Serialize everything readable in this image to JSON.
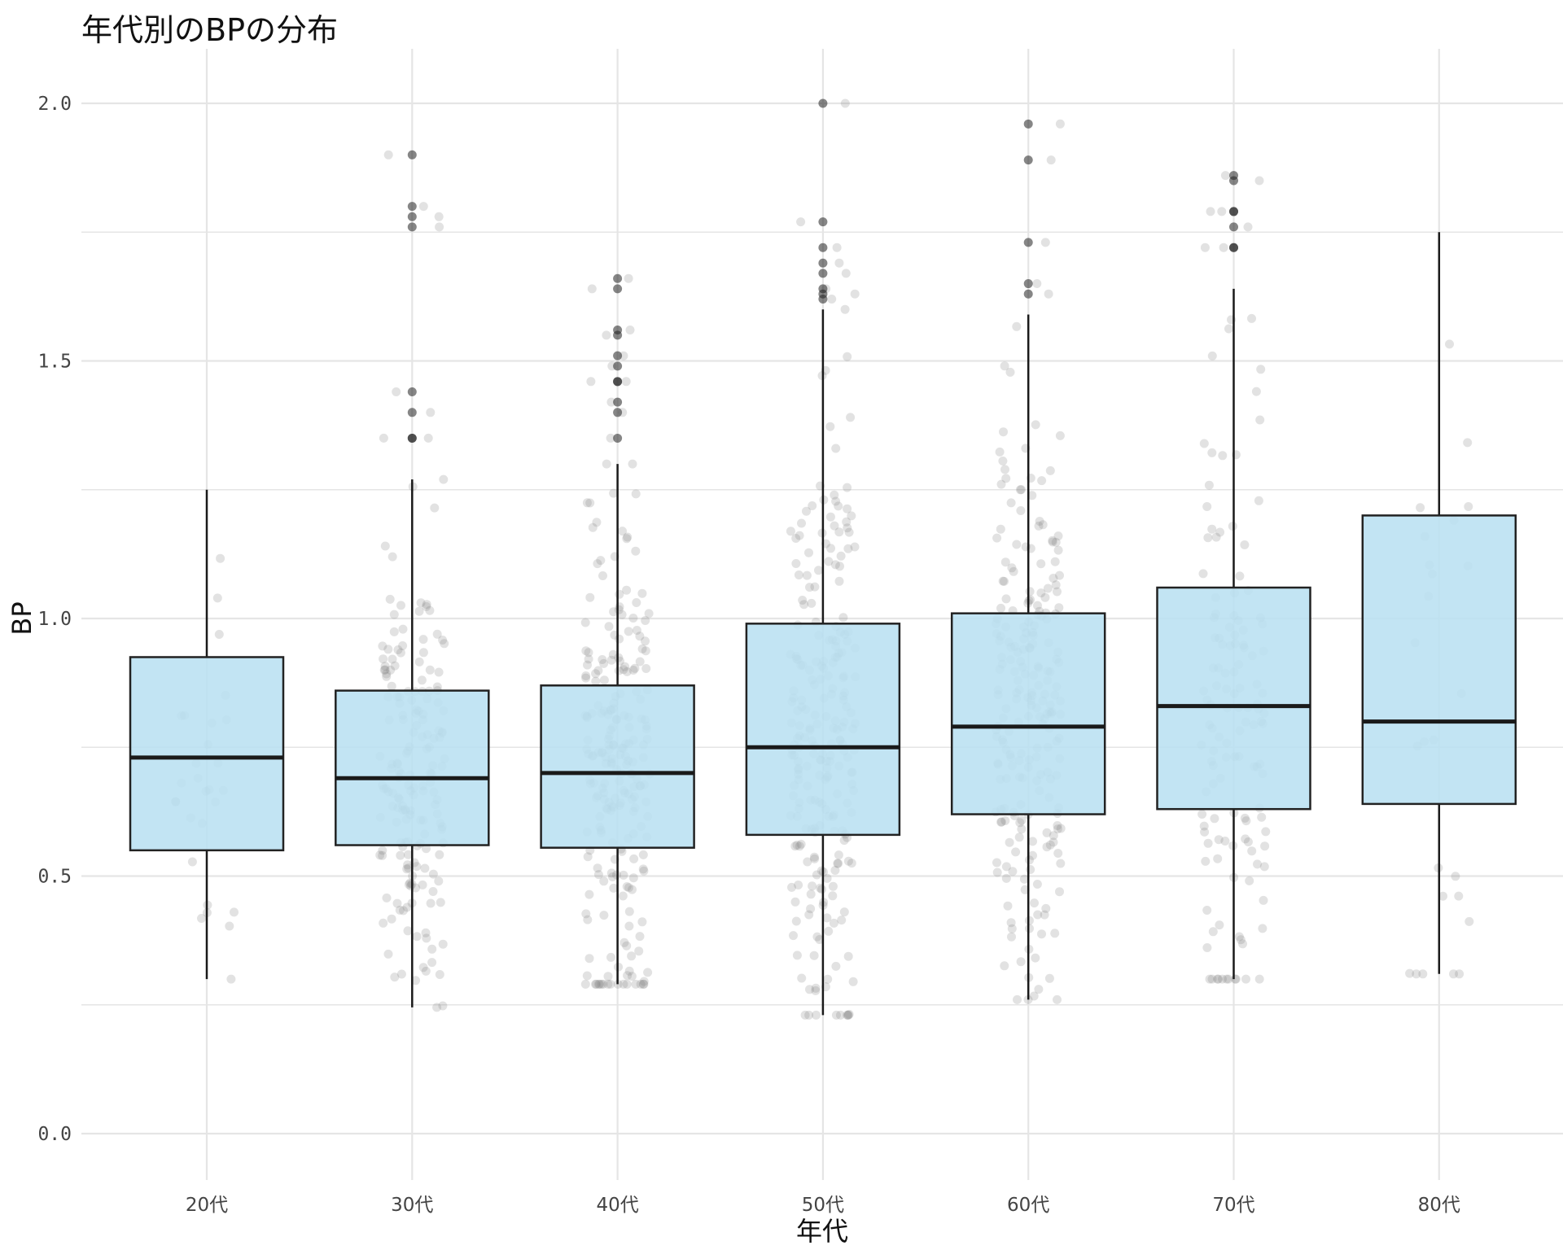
{
  "chart_data": {
    "type": "boxplot",
    "title": "年代別のBPの分布",
    "xlabel": "年代",
    "ylabel": "BP",
    "categories": [
      "20代",
      "30代",
      "40代",
      "50代",
      "60代",
      "70代",
      "80代"
    ],
    "ylim": [
      -0.09,
      2.11
    ],
    "y_ticks": [
      0.0,
      0.5,
      1.0,
      1.5,
      2.0
    ],
    "y_tick_labels": [
      "0.0",
      "0.5",
      "1.0",
      "1.5",
      "2.0"
    ],
    "grid": true,
    "legend": "none",
    "colors": {
      "box_fill": "#b9e0f1",
      "box_stroke": "#222222",
      "points": "#7a7a7a",
      "grid": "#e5e5e5"
    },
    "boxes": [
      {
        "category": "20代",
        "whisker_low": 0.3,
        "q1": 0.55,
        "median": 0.73,
        "q3": 0.925,
        "whisker_high": 1.25,
        "outliers": []
      },
      {
        "category": "30代",
        "whisker_low": 0.245,
        "q1": 0.56,
        "median": 0.69,
        "q3": 0.86,
        "whisker_high": 1.27,
        "outliers": [
          1.9,
          1.8,
          1.78,
          1.76,
          1.44,
          1.4,
          1.35,
          1.35
        ]
      },
      {
        "category": "40代",
        "whisker_low": 0.29,
        "q1": 0.555,
        "median": 0.7,
        "q3": 0.87,
        "whisker_high": 1.3,
        "outliers": [
          1.66,
          1.64,
          1.56,
          1.55,
          1.51,
          1.49,
          1.46,
          1.46,
          1.42,
          1.4,
          1.35
        ]
      },
      {
        "category": "50代",
        "whisker_low": 0.23,
        "q1": 0.58,
        "median": 0.75,
        "q3": 0.99,
        "whisker_high": 1.6,
        "outliers": [
          2.0,
          1.77,
          1.72,
          1.69,
          1.67,
          1.64,
          1.63,
          1.62
        ]
      },
      {
        "category": "60代",
        "whisker_low": 0.26,
        "q1": 0.62,
        "median": 0.79,
        "q3": 1.01,
        "whisker_high": 1.59,
        "outliers": [
          1.96,
          1.89,
          1.73,
          1.65,
          1.63
        ]
      },
      {
        "category": "70代",
        "whisker_low": 0.3,
        "q1": 0.63,
        "median": 0.83,
        "q3": 1.06,
        "whisker_high": 1.64,
        "outliers": [
          1.86,
          1.85,
          1.79,
          1.79,
          1.76,
          1.72,
          1.72
        ]
      },
      {
        "category": "80代",
        "whisker_low": 0.31,
        "q1": 0.64,
        "median": 0.8,
        "q3": 1.2,
        "whisker_high": 1.75,
        "outliers": []
      }
    ],
    "jitter_point_counts": [
      28,
      180,
      230,
      240,
      230,
      130,
      25
    ]
  }
}
